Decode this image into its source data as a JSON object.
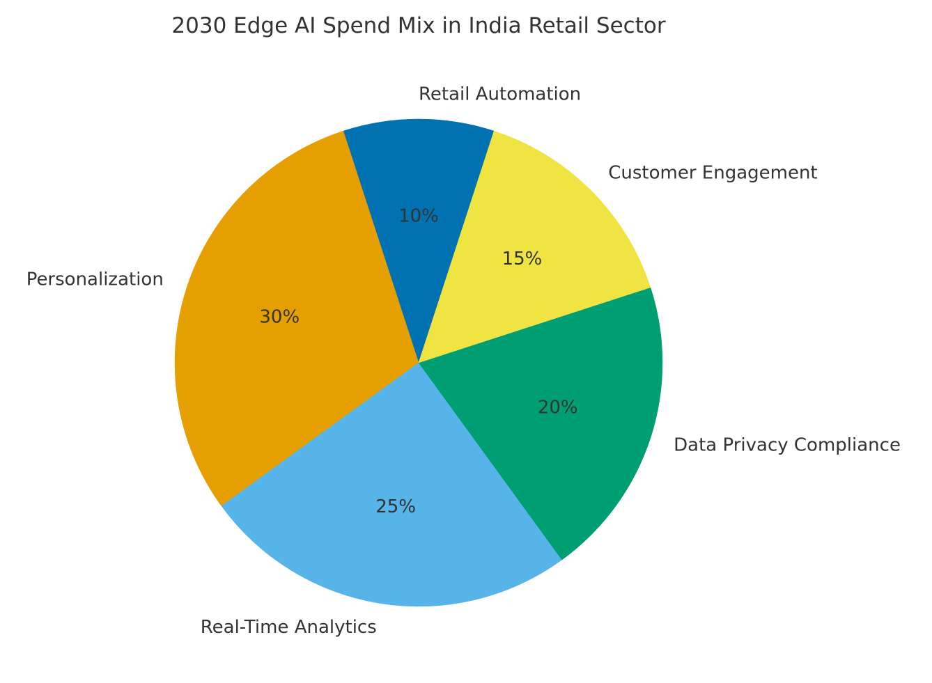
{
  "chart_data": {
    "type": "pie",
    "title": "2030 Edge AI Spend Mix in India Retail Sector",
    "slices": [
      {
        "label": "Retail Automation",
        "value": 10,
        "pct_label": "10%",
        "color": "#0072B2"
      },
      {
        "label": "Personalization",
        "value": 30,
        "pct_label": "30%",
        "color": "#E69F00"
      },
      {
        "label": "Real-Time Analytics",
        "value": 25,
        "pct_label": "25%",
        "color": "#56B4E9"
      },
      {
        "label": "Data Privacy Compliance",
        "value": 20,
        "pct_label": "20%",
        "color": "#009E73"
      },
      {
        "label": "Customer Engagement",
        "value": 15,
        "pct_label": "15%",
        "color": "#F0E442"
      }
    ],
    "start_angle_deg": 72,
    "direction": "counterclockwise",
    "legend": "none"
  }
}
